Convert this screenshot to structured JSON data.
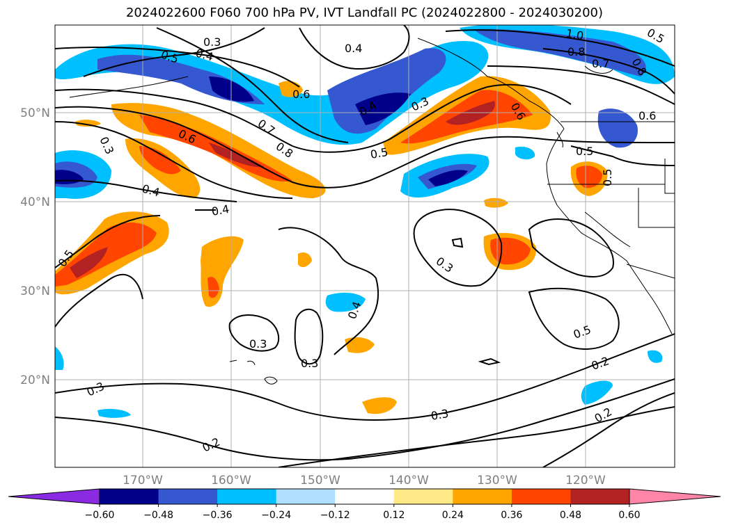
{
  "title": "2024022600 F060 700 hPa PV, IVT Landfall PC (2024022800 - 2024030200)",
  "lat_labels": [
    "50°N",
    "40°N",
    "30°N",
    "20°N"
  ],
  "lon_labels": [
    "170°W",
    "160°W",
    "150°W",
    "140°W",
    "130°W",
    "120°W"
  ],
  "colorbar": {
    "colors": [
      "#8a2be2",
      "#00008b",
      "#3558d0",
      "#00bfff",
      "#b0e0ff",
      "#ffffff",
      "#ffe987",
      "#ffa500",
      "#ff4500",
      "#b22222",
      "#ff85a8"
    ],
    "tick_labels": [
      "−0.60",
      "−0.48",
      "−0.36",
      "−0.24",
      "−0.12",
      "0.12",
      "0.24",
      "0.36",
      "0.48",
      "0.60"
    ]
  },
  "contour_labels": [
    "0.3",
    "0.4",
    "0.5",
    "0.4",
    "1.0",
    "0.8",
    "0.7",
    "0.8",
    "0.6",
    "0.4",
    "0.3",
    "0.7",
    "0.8",
    "0.5",
    "0.6",
    "0.3",
    "0.6",
    "0.4",
    "0.4",
    "0.5",
    "0.5",
    "0.5",
    "0.3",
    "0.4",
    "0.3",
    "0.3",
    "0.3",
    "0.5",
    "0.2",
    "0.3",
    "0.2",
    "0.2",
    "0.6",
    "0.5"
  ],
  "colors": {
    "contour": "#000000",
    "grid": "#b0b0b0",
    "coast": "#000000"
  }
}
